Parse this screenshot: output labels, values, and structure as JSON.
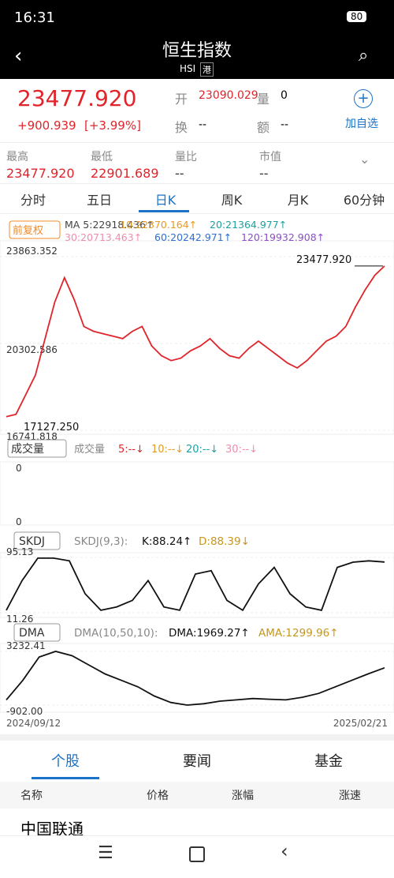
{
  "status": {
    "time": "16:31",
    "battery": "80"
  },
  "header": {
    "title": "恒生指数",
    "code": "HSI",
    "market": "港"
  },
  "quote": {
    "price": "23477.920",
    "change": "+900.939",
    "pct": "[+3.99%]",
    "open_label": "开",
    "open": "23090.029",
    "vol_label": "量",
    "vol": "0",
    "turn_label": "换",
    "turn": "--",
    "amt_label": "额",
    "amt": "--",
    "watch": "加自选"
  },
  "stats": [
    {
      "label": "最高",
      "value": "23477.920"
    },
    {
      "label": "最低",
      "value": "22901.689"
    },
    {
      "label": "量比",
      "value": "--"
    },
    {
      "label": "市值",
      "value": "--"
    }
  ],
  "tabs": [
    "分时",
    "五日",
    "日K",
    "周K",
    "月K",
    "60分钟"
  ],
  "ma": {
    "adjust": "前复权",
    "items": [
      "MA 5:22918.436↑",
      "10:22370.164↑",
      "20:21364.977↑",
      "30:20713.463↑",
      "60:20242.971↑",
      "120:19932.908↑"
    ]
  },
  "main": {
    "ylim": [
      16741.818,
      23863.352
    ],
    "yticks": [
      {
        "value": 23863.352,
        "label": "23863.352"
      },
      {
        "value": 20302.586,
        "label": "20302.586"
      },
      {
        "value": 16741.818,
        "label": "16741.818"
      }
    ],
    "high_note": "23477.920",
    "low_note": "17127.250",
    "close": [
      17300,
      17400,
      18200,
      19000,
      20500,
      22000,
      23000,
      22100,
      21000,
      20800,
      20700,
      20600,
      20500,
      20800,
      21000,
      20200,
      19800,
      19600,
      19700,
      20000,
      20200,
      20500,
      20100,
      19800,
      19700,
      20100,
      20400,
      20100,
      19800,
      19500,
      19300,
      19600,
      20000,
      20400,
      20600,
      21000,
      21800,
      22500,
      23100,
      23477.92
    ]
  },
  "volume": {
    "selector": "成交量",
    "items": [
      "成交量",
      "5:--↓",
      "10:--↓",
      "20:--↓",
      "30:--↓"
    ],
    "top": "0",
    "bottom": "0"
  },
  "kdj": {
    "selector": "SKDJ",
    "items": [
      "SKDJ(9,3):",
      "K:88.24↑",
      "D:88.39↓"
    ],
    "ylim": [
      11.26,
      95.13
    ],
    "yticks": [
      {
        "value": 95.13,
        "label": "95.13"
      },
      {
        "value": 11.26,
        "label": "11.26"
      }
    ],
    "k": [
      15,
      60,
      94,
      94,
      90,
      40,
      15,
      20,
      30,
      60,
      20,
      15,
      70,
      75,
      30,
      15,
      55,
      80,
      40,
      20,
      15,
      80,
      88,
      90,
      88.24
    ]
  },
  "dma": {
    "selector": "DMA",
    "items": [
      "DMA(10,50,10):",
      "DMA:1969.27↑",
      "AMA:1299.96↑"
    ],
    "ylim": [
      -902,
      3232.41
    ],
    "yticks": [
      {
        "value": 3232.41,
        "label": "3232.41"
      },
      {
        "value": -902,
        "label": "-902.00"
      }
    ],
    "dma": [
      -500,
      1000,
      2800,
      3232.41,
      2900,
      2200,
      1500,
      1000,
      500,
      -200,
      -700,
      -900,
      -800,
      -600,
      -500,
      -400,
      -450,
      -500,
      -300,
      0,
      500,
      1000,
      1500,
      1969.27
    ]
  },
  "dates": [
    "2024/09/12",
    "2025/02/21"
  ],
  "bottom_tabs": [
    "个股",
    "要闻",
    "基金"
  ],
  "table": {
    "header": [
      "名称",
      "价格",
      "涨幅",
      "涨速"
    ],
    "rows": [
      [
        "中国联通"
      ]
    ]
  }
}
